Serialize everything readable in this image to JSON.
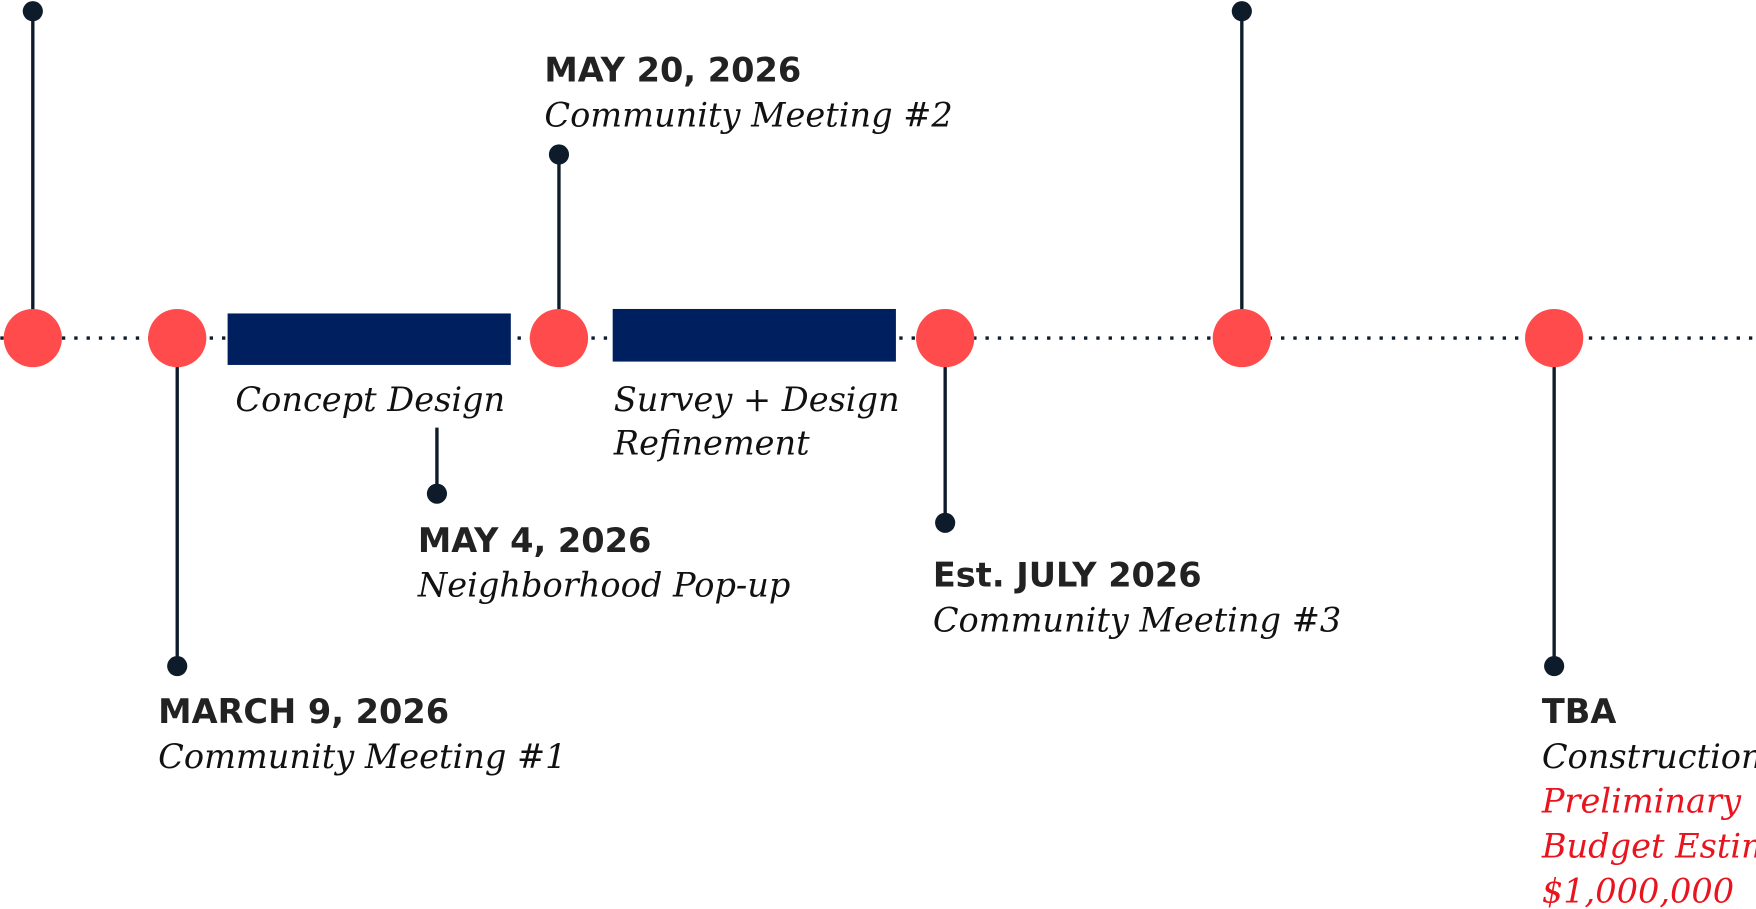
{
  "events": [
    {
      "date": "MARCH 9, 2026",
      "label": "Community Meeting #1"
    },
    {
      "date": "MAY 4, 2026",
      "label": "Neighborhood Pop-up"
    },
    {
      "date": "MAY 20, 2026",
      "label": "Community Meeting #2"
    },
    {
      "date": "Est. JULY 2026",
      "label": "Community Meeting #3"
    },
    {
      "date": "TBA",
      "label": "Construction",
      "notes": [
        "Preliminary",
        "Budget Estimate",
        "$1,000,000"
      ]
    }
  ],
  "phases": [
    {
      "label": [
        "Concept Design"
      ]
    },
    {
      "label": [
        "Survey + Design",
        "Refinement"
      ]
    }
  ]
}
